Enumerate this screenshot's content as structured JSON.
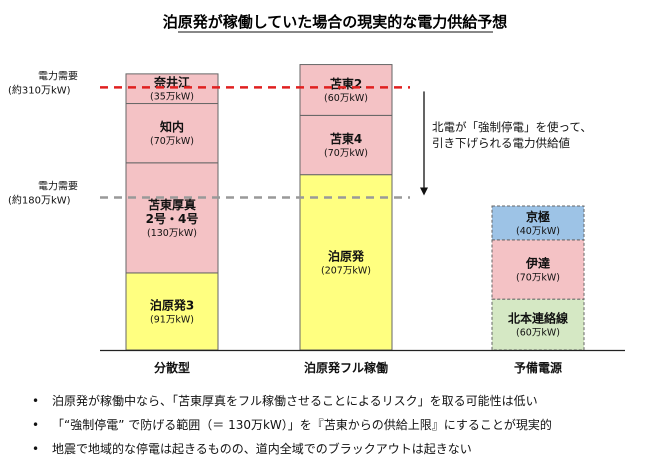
{
  "chart_data": {
    "type": "bar",
    "stacked": true,
    "title": "泊原発が稼働していた場合の現実的な電力供給予想",
    "unit": "万kW",
    "ylim": [
      0,
      320
    ],
    "categories": [
      "分散型",
      "泊原発フル稼働",
      "予備電源"
    ],
    "bars": [
      {
        "category": "分散型",
        "segments": [
          {
            "lines": [
              "泊原発3"
            ],
            "cap": "(91万kW)",
            "value": 91,
            "color": "#ffff80",
            "style": "solid"
          },
          {
            "lines": [
              "苫東厚真",
              "2号・4号"
            ],
            "cap": "(130万kW)",
            "value": 130,
            "color": "#f4c2c5",
            "style": "solid"
          },
          {
            "lines": [
              "知内"
            ],
            "cap": "(70万kW)",
            "value": 70,
            "color": "#f4c2c5",
            "style": "solid"
          },
          {
            "lines": [
              "奈井江"
            ],
            "cap": "(35万kW)",
            "value": 35,
            "color": "#f4c2c5",
            "style": "solid"
          }
        ]
      },
      {
        "category": "泊原発フル稼働",
        "segments": [
          {
            "lines": [
              "泊原発"
            ],
            "cap": "(207万kW)",
            "value": 207,
            "color": "#ffff80",
            "style": "solid"
          },
          {
            "lines": [
              "苫東4"
            ],
            "cap": "(70万kW)",
            "value": 70,
            "color": "#f4c2c5",
            "style": "solid"
          },
          {
            "lines": [
              "苫東2"
            ],
            "cap": "(60万kW)",
            "value": 60,
            "color": "#f4c2c5",
            "style": "solid"
          }
        ]
      },
      {
        "category": "予備電源",
        "segments": [
          {
            "lines": [
              "北本連絡線"
            ],
            "cap": "(60万kW)",
            "value": 60,
            "color": "#d5e8c4",
            "style": "dashed"
          },
          {
            "lines": [
              "伊達"
            ],
            "cap": "(70万kW)",
            "value": 70,
            "color": "#f4c2c5",
            "style": "dashed"
          },
          {
            "lines": [
              "京極"
            ],
            "cap": "(40万kW)",
            "value": 40,
            "color": "#9dc3e6",
            "style": "dashed"
          }
        ]
      }
    ],
    "reference_lines": [
      {
        "label_lines": [
          "電力需要",
          "(約310万kW)"
        ],
        "value": 310,
        "color": "#e02020"
      },
      {
        "label_lines": [
          "電力需要",
          "(約180万kW)"
        ],
        "value": 180,
        "color": "#999999"
      }
    ],
    "annotation": {
      "lines": [
        "北電が「強制停電」を使って、",
        "引き下げられる電力供給値"
      ]
    }
  },
  "bullets": [
    "泊原発が稼働中なら、「苫東厚真をフル稼働させることによるリスク」を取る可能性は低い",
    "「“強制停電” で防げる範囲（＝ 130万kW）」を『苫東からの供給上限』にすることが現実的",
    "地震で地域的な停電は起きるものの、道内全域でのブラックアウトは起きない"
  ],
  "bullet_char": "•"
}
